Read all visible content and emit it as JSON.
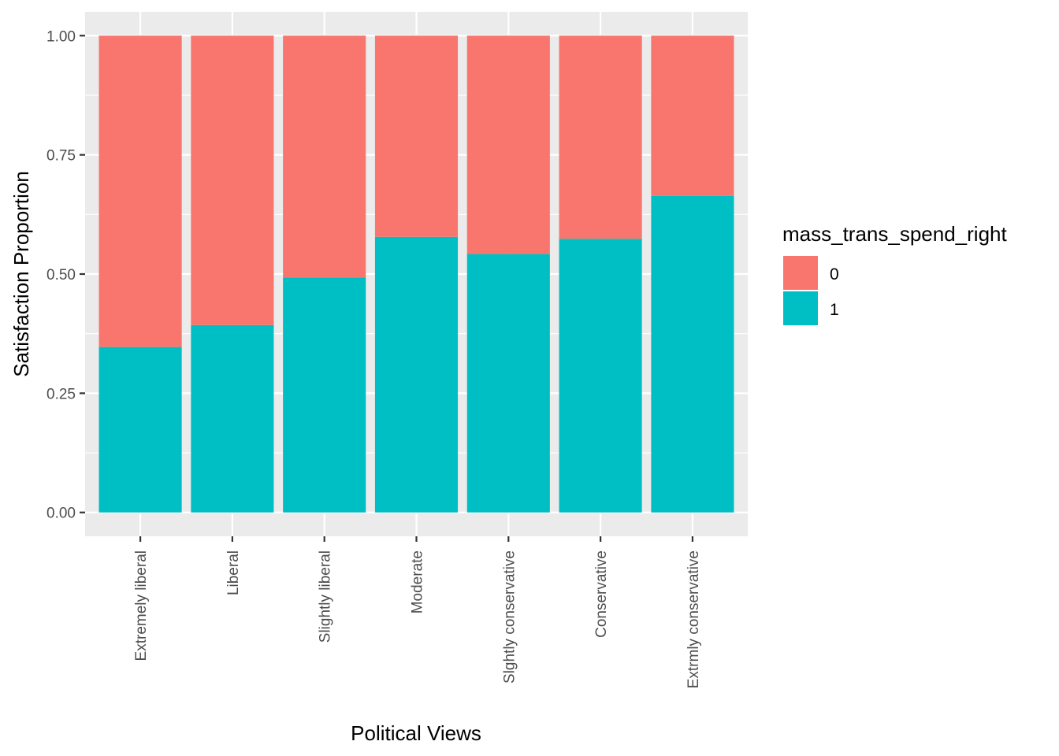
{
  "chart_data": {
    "type": "bar",
    "stacked": true,
    "categories": [
      "Extremely liberal",
      "Liberal",
      "Slightly liberal",
      "Moderate",
      "Slghtly conservative",
      "Conservative",
      "Extrmly conservative"
    ],
    "series": [
      {
        "name": "0",
        "color": "#F8766D",
        "values": [
          0.653,
          0.607,
          0.507,
          0.422,
          0.458,
          0.426,
          0.336
        ]
      },
      {
        "name": "1",
        "color": "#00BFC4",
        "values": [
          0.347,
          0.393,
          0.493,
          0.578,
          0.542,
          0.574,
          0.664
        ]
      }
    ],
    "xlabel": "Political Views",
    "ylabel": "Satisfaction Proportion",
    "ylim": [
      -0.05,
      1.05
    ],
    "yticks": [
      0,
      0.25,
      0.5,
      0.75,
      1
    ],
    "ytick_labels": [
      "0.00",
      "0.25",
      "0.50",
      "0.75",
      "1.00"
    ],
    "grid": true,
    "legend": {
      "title": "mass_trans_spend_right",
      "position": "right"
    }
  }
}
